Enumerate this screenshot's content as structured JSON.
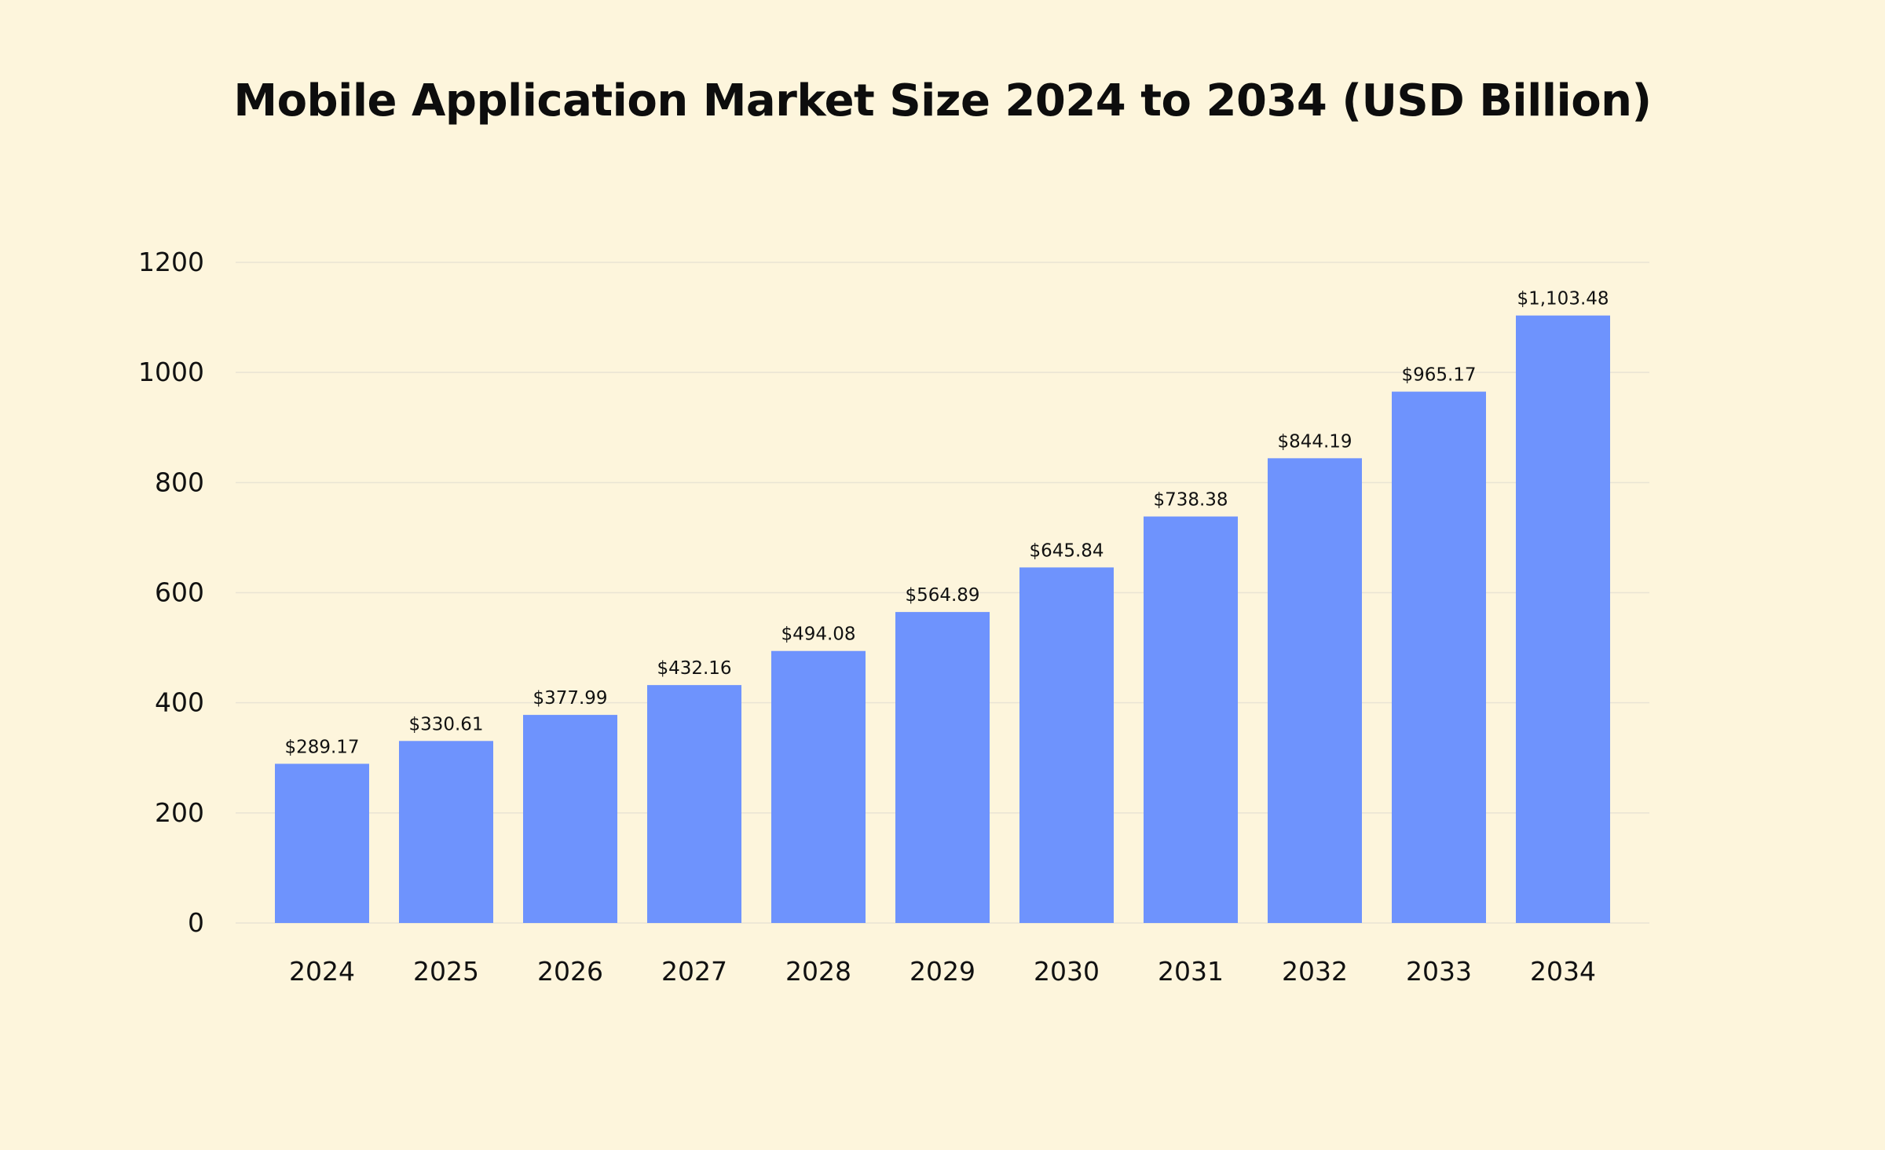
{
  "chart_data": {
    "type": "bar",
    "title": "Mobile Application Market Size 2024 to 2034 (USD Billion)",
    "xlabel": "",
    "ylabel": "",
    "categories": [
      "2024",
      "2025",
      "2026",
      "2027",
      "2028",
      "2029",
      "2030",
      "2031",
      "2032",
      "2033",
      "2034"
    ],
    "values": [
      289.17,
      330.61,
      377.99,
      432.16,
      494.08,
      564.89,
      645.84,
      738.38,
      844.19,
      965.17,
      1103.48
    ],
    "value_labels": [
      "$289.17",
      "$330.61",
      "$377.99",
      "$432.16",
      "$494.08",
      "$564.89",
      "$645.84",
      "$738.38",
      "$844.19",
      "$965.17",
      "$1,103.48"
    ],
    "yticks": [
      0,
      200,
      400,
      600,
      800,
      1000,
      1200
    ],
    "ylim": [
      0,
      1200
    ],
    "grid": true,
    "legend": "none",
    "colors": {
      "background": "#FDF5DC",
      "bar": "#6E93FD",
      "grid": "#E9E4D4",
      "text": "#111111"
    }
  }
}
